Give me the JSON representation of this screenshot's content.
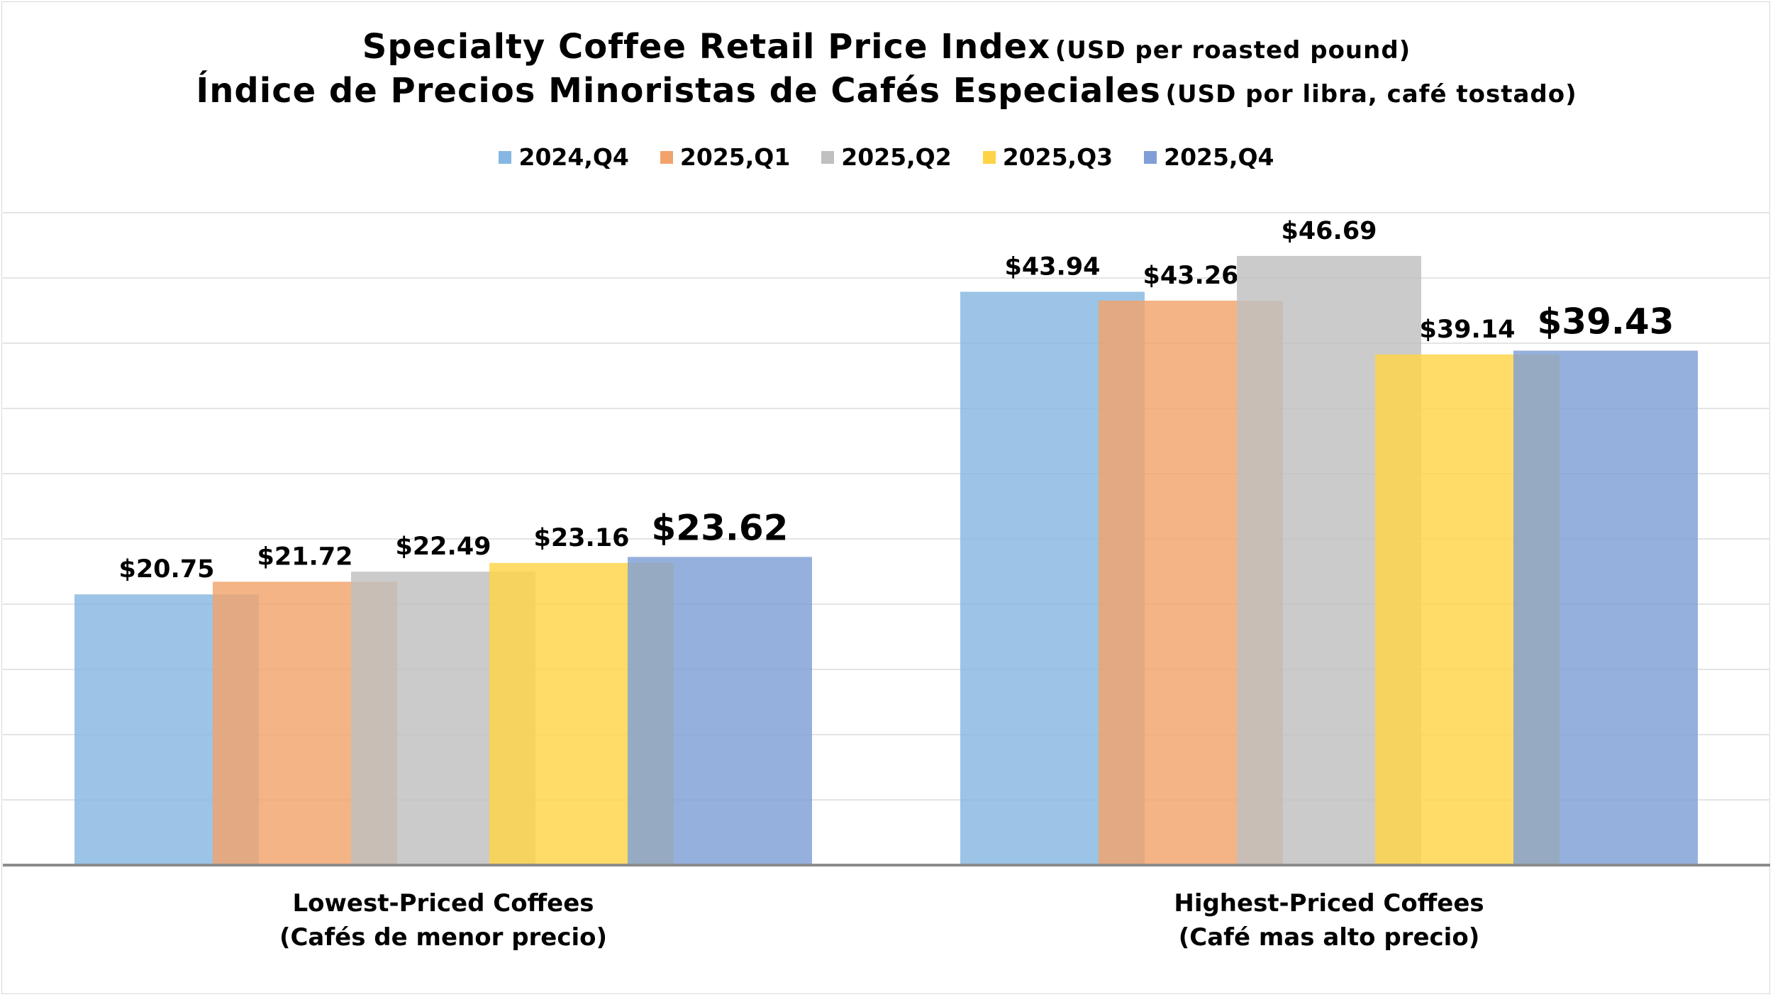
{
  "title": {
    "line1_main": "Specialty Coffee Retail Price Index",
    "line1_sub": "(USD per roasted pound)",
    "line2_main": "Índice de Precios Minoristas de Cafés Especiales",
    "line2_sub": "(USD por libra, café tostado)"
  },
  "chart_data": {
    "type": "bar",
    "title": "Specialty Coffee Retail Price Index (USD per roasted pound) / Índice de Precios Minoristas de Cafés Especiales (USD por libra, café tostado)",
    "categories": [
      [
        "Lowest-Priced Coffees",
        "(Cafés de menor precio)"
      ],
      [
        "Highest-Priced Coffees",
        "(Café mas alto precio)"
      ]
    ],
    "series": [
      {
        "name": "2024,Q4",
        "color": "#86b7e2",
        "values": [
          20.75,
          43.94
        ],
        "labels": [
          "$20.75",
          "$43.94"
        ]
      },
      {
        "name": "2025,Q1",
        "color": "#f1a36b",
        "values": [
          21.72,
          43.26
        ],
        "labels": [
          "$21.72",
          "$43.26"
        ]
      },
      {
        "name": "2025,Q2",
        "color": "#c0c0c0",
        "values": [
          22.49,
          46.69
        ],
        "labels": [
          "$22.49",
          "$46.69"
        ]
      },
      {
        "name": "2025,Q3",
        "color": "#ffd347",
        "values": [
          23.16,
          39.14
        ],
        "labels": [
          "$23.16",
          "$39.14"
        ]
      },
      {
        "name": "2025,Q4",
        "color": "#7f9fd6",
        "values": [
          23.62,
          39.43
        ],
        "labels": [
          "$23.62",
          "$39.43"
        ]
      }
    ],
    "ylim": [
      0,
      50
    ],
    "grid": true,
    "legend": "top-center",
    "highlighted_series": "2025,Q4"
  }
}
